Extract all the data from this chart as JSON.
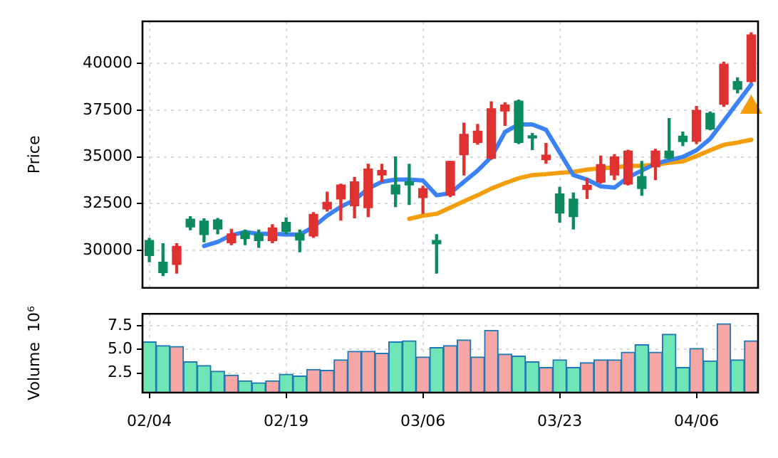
{
  "chart_data": [
    {
      "type": "candlestick",
      "ylabel": "Price",
      "tick_labels": "y",
      "grid": true,
      "categories": [
        null,
        null,
        null,
        null,
        null,
        null,
        null,
        null,
        null,
        null,
        null,
        null,
        null,
        null,
        null,
        null,
        null,
        null,
        null,
        null,
        null,
        null,
        null,
        null,
        null,
        null,
        null,
        null,
        null,
        null,
        null,
        null,
        null,
        null,
        null,
        null,
        null,
        null,
        null,
        null,
        null,
        null,
        null,
        null,
        null
      ],
      "ylim": [
        28000,
        42250
      ],
      "yticks": [
        30000,
        32500,
        35000,
        37500,
        40000
      ],
      "ohlc": [
        [
          30530,
          30650,
          29400,
          29730
        ],
        [
          29370,
          30360,
          28650,
          28820
        ],
        [
          29250,
          30360,
          28790,
          30220
        ],
        [
          31670,
          31810,
          31110,
          31260
        ],
        [
          31570,
          31690,
          30460,
          30850
        ],
        [
          31640,
          31710,
          30890,
          31140
        ],
        [
          30410,
          31130,
          30310,
          30890
        ],
        [
          30990,
          31090,
          30310,
          30630
        ],
        [
          30890,
          31090,
          30170,
          30530
        ],
        [
          30530,
          31380,
          30410,
          31210
        ],
        [
          31500,
          31740,
          30890,
          31010
        ],
        [
          30890,
          31090,
          29930,
          30560
        ],
        [
          30770,
          32030,
          30700,
          31930
        ],
        [
          32220,
          33120,
          32100,
          32580
        ],
        [
          32750,
          33550,
          31620,
          33500
        ],
        [
          32390,
          33910,
          31740,
          33670
        ],
        [
          32290,
          34610,
          31810,
          34350
        ],
        [
          34030,
          34610,
          33670,
          34280
        ],
        [
          33500,
          35000,
          32340,
          33020
        ],
        [
          33670,
          34610,
          32460,
          33500
        ],
        [
          32830,
          33430,
          31980,
          33310
        ],
        [
          30530,
          30850,
          28790,
          30360
        ],
        [
          32950,
          34760,
          32870,
          34760
        ],
        [
          35120,
          36810,
          34030,
          36210
        ],
        [
          35770,
          36740,
          35680,
          36380
        ],
        [
          34930,
          37950,
          34880,
          37580
        ],
        [
          37460,
          37900,
          36690,
          37780
        ],
        [
          37990,
          38040,
          35720,
          35770
        ],
        [
          36130,
          36260,
          35390,
          36010
        ],
        [
          34850,
          35720,
          34660,
          35100
        ],
        [
          33020,
          33380,
          31520,
          32000
        ],
        [
          32750,
          33070,
          31140,
          31810
        ],
        [
          33260,
          33840,
          32780,
          33480
        ],
        [
          33650,
          35050,
          33600,
          34590
        ],
        [
          34030,
          35120,
          33790,
          35000
        ],
        [
          33550,
          35360,
          33500,
          35310
        ],
        [
          33960,
          34760,
          32950,
          33310
        ],
        [
          34470,
          35410,
          33790,
          35310
        ],
        [
          35310,
          37050,
          34880,
          34950
        ],
        [
          36110,
          36330,
          35600,
          35820
        ],
        [
          35840,
          37700,
          35720,
          37490
        ],
        [
          37340,
          37410,
          36450,
          36500
        ],
        [
          37820,
          40070,
          37700,
          39950
        ],
        [
          39030,
          39230,
          38430,
          38620
        ],
        [
          39030,
          41640,
          38990,
          41520
        ]
      ],
      "colors": [
        "#0c8c5e",
        "#0c8c5e",
        "#e03131",
        "#0c8c5e",
        "#0c8c5e",
        "#0c8c5e",
        "#e03131",
        "#0c8c5e",
        "#0c8c5e",
        "#e03131",
        "#0c8c5e",
        "#0c8c5e",
        "#e03131",
        "#e03131",
        "#e03131",
        "#e03131",
        "#e03131",
        "#e03131",
        "#0c8c5e",
        "#0c8c5e",
        "#e03131",
        "#0c8c5e",
        "#e03131",
        "#e03131",
        "#e03131",
        "#e03131",
        "#e03131",
        "#0c8c5e",
        "#0c8c5e",
        "#e03131",
        "#0c8c5e",
        "#0c8c5e",
        "#e03131",
        "#e03131",
        "#e03131",
        "#e03131",
        "#0c8c5e",
        "#e03131",
        "#0c8c5e",
        "#0c8c5e",
        "#e03131",
        "#0c8c5e",
        "#e03131",
        "#0c8c5e",
        "#e03131"
      ],
      "series": [
        {
          "type": "line",
          "color": "#3b82f6",
          "values": [
            null,
            null,
            null,
            null,
            30240,
            30460,
            30820,
            30990,
            30890,
            30890,
            30850,
            30850,
            31260,
            31860,
            32340,
            32700,
            33310,
            33670,
            33790,
            33790,
            33740,
            32950,
            33070,
            33670,
            34270,
            35000,
            36330,
            36740,
            36740,
            36450,
            35240,
            34030,
            33790,
            33430,
            33360,
            33910,
            34270,
            34640,
            34830,
            35000,
            35360,
            35970,
            36930,
            37900,
            38870
          ]
        },
        {
          "type": "line",
          "color": "#f59e0b",
          "values": [
            null,
            null,
            null,
            null,
            null,
            null,
            null,
            null,
            null,
            null,
            null,
            null,
            null,
            null,
            null,
            null,
            null,
            null,
            null,
            31690,
            31860,
            31960,
            32290,
            32630,
            32950,
            33310,
            33600,
            33860,
            34030,
            34080,
            34150,
            34200,
            34320,
            34400,
            34440,
            34520,
            34520,
            34590,
            34690,
            34760,
            35050,
            35360,
            35650,
            35770,
            35920
          ]
        },
        {
          "type": "scatter",
          "color": "#f59e0b",
          "marker": "triangle",
          "values": [
            null,
            null,
            null,
            null,
            null,
            null,
            null,
            null,
            null,
            null,
            null,
            null,
            null,
            null,
            null,
            null,
            null,
            null,
            null,
            null,
            null,
            null,
            null,
            null,
            null,
            null,
            null,
            null,
            null,
            null,
            null,
            null,
            null,
            null,
            null,
            null,
            null,
            null,
            null,
            null,
            null,
            null,
            null,
            null,
            37650
          ]
        }
      ]
    },
    {
      "type": "bar",
      "ylabel": "Volume  10⁶",
      "grid": true,
      "categories": [
        "02/04",
        null,
        null,
        null,
        null,
        null,
        null,
        null,
        null,
        null,
        "02/19",
        null,
        null,
        null,
        null,
        null,
        null,
        null,
        null,
        null,
        "03/06",
        null,
        null,
        null,
        null,
        null,
        null,
        null,
        null,
        null,
        "03/23",
        null,
        null,
        null,
        null,
        null,
        null,
        null,
        null,
        null,
        "04/06",
        null,
        null,
        null,
        null
      ],
      "ylim": [
        0.46,
        8.74
      ],
      "yticks": [
        2.5,
        {
          "value": 5,
          "label": "5.0"
        },
        7.5
      ],
      "values": [
        5.8,
        5.4,
        5.3,
        3.7,
        3.3,
        2.7,
        2.3,
        1.7,
        1.5,
        1.7,
        2.4,
        2.2,
        2.9,
        2.8,
        3.9,
        4.8,
        4.8,
        4.6,
        5.8,
        5.9,
        4.2,
        5.2,
        5.4,
        6.0,
        4.2,
        7.0,
        4.5,
        4.3,
        3.7,
        3.1,
        3.9,
        3.1,
        3.6,
        3.9,
        3.9,
        4.7,
        5.5,
        4.7,
        6.6,
        3.1,
        5.1,
        3.8,
        7.7,
        3.9,
        5.9
      ],
      "colors": [
        "#6ee6b6",
        "#6ee6b6",
        "#f7a6a6",
        "#6ee6b6",
        "#6ee6b6",
        "#6ee6b6",
        "#f7a6a6",
        "#6ee6b6",
        "#6ee6b6",
        "#f7a6a6",
        "#6ee6b6",
        "#6ee6b6",
        "#f7a6a6",
        "#f7a6a6",
        "#f7a6a6",
        "#f7a6a6",
        "#f7a6a6",
        "#f7a6a6",
        "#6ee6b6",
        "#6ee6b6",
        "#f7a6a6",
        "#6ee6b6",
        "#f7a6a6",
        "#f7a6a6",
        "#f7a6a6",
        "#f7a6a6",
        "#f7a6a6",
        "#6ee6b6",
        "#6ee6b6",
        "#f7a6a6",
        "#6ee6b6",
        "#6ee6b6",
        "#f7a6a6",
        "#f7a6a6",
        "#f7a6a6",
        "#f7a6a6",
        "#6ee6b6",
        "#f7a6a6",
        "#6ee6b6",
        "#6ee6b6",
        "#f7a6a6",
        "#6ee6b6",
        "#f7a6a6",
        "#6ee6b6",
        "#f7a6a6"
      ]
    }
  ]
}
